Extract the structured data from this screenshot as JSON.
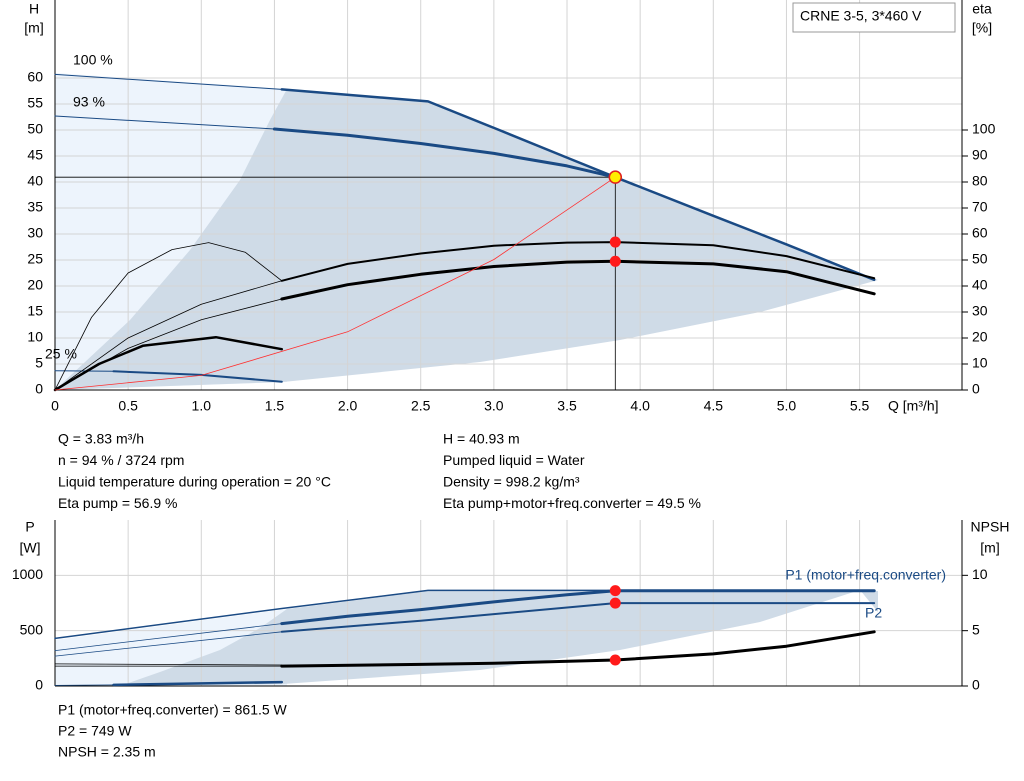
{
  "chart_data": [
    {
      "type": "line",
      "title": "CRNE 3-5, 3*460 V",
      "x_label": "Q [m³/h]",
      "y_label": "H",
      "y_unit": "[m]",
      "y2_label": "eta",
      "y2_unit": "[%]",
      "xlim": [
        0,
        6.2
      ],
      "ylim": [
        0,
        75
      ],
      "y2lim": [
        0,
        150
      ],
      "xticks": [
        0,
        0.5,
        {
          "value": 1,
          "label": "1.0"
        },
        1.5,
        {
          "value": 2,
          "label": "2.0"
        },
        2.5,
        {
          "value": 3,
          "label": "3.0"
        },
        3.5,
        {
          "value": 4,
          "label": "4.0"
        },
        4.5,
        {
          "value": 5,
          "label": "5.0"
        },
        5.5
      ],
      "yticks": [
        0,
        5,
        10,
        15,
        20,
        25,
        30,
        35,
        40,
        45,
        50,
        55,
        60
      ],
      "y2ticks": [
        0,
        10,
        20,
        30,
        40,
        50,
        60,
        70,
        80,
        90,
        100
      ],
      "grid": true,
      "series": [
        {
          "name": "100 %",
          "color": "#1a4a84",
          "width": 1,
          "x": [
            0,
            1.55
          ],
          "values": [
            60.7,
            57.8
          ]
        },
        {
          "color": "#1a4a84",
          "width": 2.5,
          "x": [
            1.55,
            2.55,
            3.0,
            3.5,
            3.83,
            4.5,
            5.0,
            5.6
          ],
          "values": [
            57.8,
            55.5,
            50.4,
            44.7,
            40.93,
            33.5,
            28.0,
            21.2
          ]
        },
        {
          "name": "93 %",
          "color": "#1a4a84",
          "width": 1,
          "x": [
            0,
            1.5
          ],
          "values": [
            52.7,
            50.2
          ]
        },
        {
          "color": "#1a4a84",
          "width": 3,
          "x": [
            1.5,
            2.0,
            2.5,
            3.0,
            3.5,
            3.83
          ],
          "values": [
            50.2,
            49.0,
            47.4,
            45.5,
            43.1,
            40.93
          ]
        },
        {
          "name": "25 %",
          "color": "#1a4a84",
          "width": 1,
          "x": [
            0,
            0.4
          ],
          "values": [
            3.7,
            3.6
          ]
        },
        {
          "color": "#1a4a84",
          "width": 2,
          "x": [
            0.4,
            1.0,
            1.55
          ],
          "values": [
            3.6,
            2.9,
            1.6
          ]
        },
        {
          "color": "#000000",
          "width": 2,
          "axis": "y2",
          "x": [
            1.55,
            2.0,
            2.5,
            3.0,
            3.5,
            3.83,
            4.5,
            5.0,
            5.6
          ],
          "values": [
            42,
            48.5,
            52.5,
            55.5,
            56.7,
            56.9,
            55.7,
            51.5,
            43
          ]
        },
        {
          "color": "#000000",
          "width": 3,
          "axis": "y2",
          "x": [
            1.55,
            2.0,
            2.5,
            3.0,
            3.5,
            3.83,
            4.5,
            5.0,
            5.6
          ],
          "values": [
            35,
            40.5,
            44.5,
            47.5,
            49.2,
            49.5,
            48.5,
            45.5,
            37
          ]
        },
        {
          "color": "#000000",
          "width": 0.8,
          "axis": "y2",
          "x": [
            0,
            0.25,
            0.5,
            0.8,
            1.05,
            1.3,
            1.55
          ],
          "values": [
            0,
            28,
            45,
            54,
            56.7,
            53,
            42
          ]
        },
        {
          "color": "#000000",
          "width": 0.8,
          "axis": "y2",
          "x": [
            0,
            0.5,
            1.0,
            1.55
          ],
          "values": [
            0,
            20,
            33,
            42
          ]
        },
        {
          "color": "#000000",
          "width": 0.8,
          "axis": "y2",
          "x": [
            0,
            0.5,
            1.0,
            1.55
          ],
          "values": [
            0,
            16,
            27,
            35
          ]
        },
        {
          "color": "#000000",
          "width": 2.5,
          "axis": "y2",
          "x": [
            0,
            0.3,
            0.6,
            1.1,
            1.55
          ],
          "values": [
            0,
            10,
            17,
            20.3,
            15.7
          ]
        },
        {
          "color": "#ff3030",
          "width": 0.8,
          "x": [
            0,
            1,
            2,
            3,
            3.83
          ],
          "values": [
            0,
            2.8,
            11.2,
            25.1,
            40.93
          ]
        }
      ],
      "operating_point": {
        "x": 3.83,
        "y": 40.93,
        "y2": [
          56.9,
          49.5
        ]
      },
      "annotations": [
        [
          "Q = 3.83 m³/h",
          "n = 94 % / 3724 rpm",
          "Liquid temperature during operation = 20 °C",
          "Eta pump = 56.9 %"
        ],
        [
          "H = 40.93 m",
          "Pumped liquid = Water",
          "Density = 998.2 kg/m³",
          "Eta pump+motor+freq.converter = 49.5 %"
        ]
      ]
    },
    {
      "type": "line",
      "y_label": "P",
      "y_unit": "[W]",
      "y2_label": "NPSH",
      "y2_unit": "[m]",
      "xlim": [
        0,
        6.2
      ],
      "ylim": [
        0,
        1500
      ],
      "y2lim": [
        0,
        15
      ],
      "yticks": [
        0,
        500,
        1000
      ],
      "y2ticks": [
        0,
        5,
        10
      ],
      "grid": true,
      "series": [
        {
          "name": "P1 (motor+freq.converter)",
          "color": "#1a4a84",
          "width": 3,
          "x": [
            1.55,
            2.0,
            2.5,
            3.0,
            3.5,
            3.83,
            4.5,
            5.0,
            5.6
          ],
          "values": [
            564,
            630,
            690,
            760,
            825,
            861.5,
            861.5,
            861.5,
            861.5
          ]
        },
        {
          "name": "P2",
          "color": "#1a4a84",
          "width": 2,
          "x": [
            1.55,
            2.5,
            3.0,
            3.83,
            5.6
          ],
          "values": [
            490,
            590,
            650,
            749,
            749
          ]
        },
        {
          "color": "#1a4a84",
          "width": 1.5,
          "x": [
            0,
            1.55,
            2.55,
            5.6
          ],
          "values": [
            430,
            700,
            864,
            864
          ]
        },
        {
          "color": "#1a4a84",
          "width": 0.8,
          "x": [
            0,
            1.55
          ],
          "values": [
            320,
            564
          ]
        },
        {
          "color": "#1a4a84",
          "width": 0.8,
          "x": [
            0,
            1.55
          ],
          "values": [
            270,
            490
          ]
        },
        {
          "color": "#1a4a84",
          "width": 0.8,
          "x": [
            0,
            0.4
          ],
          "values": [
            5,
            10
          ]
        },
        {
          "color": "#1a4a84",
          "width": 2.5,
          "x": [
            0.4,
            1.55
          ],
          "values": [
            10,
            35
          ]
        },
        {
          "color": "#000000",
          "width": 3,
          "axis": "y2",
          "x": [
            1.55,
            2.5,
            3.0,
            3.83,
            4.5,
            5.0,
            5.6
          ],
          "values": [
            1.8,
            1.95,
            2.05,
            2.35,
            2.9,
            3.6,
            4.9
          ]
        },
        {
          "color": "#000000",
          "width": 0.8,
          "axis": "y2",
          "x": [
            0,
            1.55
          ],
          "values": [
            1.8,
            1.8
          ]
        },
        {
          "color": "#000000",
          "width": 0.8,
          "axis": "y2",
          "x": [
            0,
            1.55
          ],
          "values": [
            2.0,
            1.9
          ]
        }
      ],
      "operating_point": {
        "x": 3.83,
        "y": [
          861.5,
          749
        ],
        "y2": 2.35
      },
      "annotations": [
        [
          "P1 (motor+freq.converter) = 861.5 W",
          "P2 = 749 W",
          "NPSH = 2.35 m"
        ]
      ]
    }
  ]
}
